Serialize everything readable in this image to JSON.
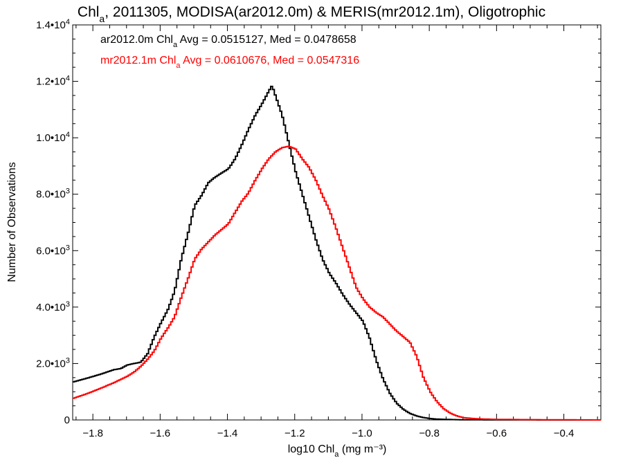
{
  "chart_data": {
    "type": "line",
    "title_parts": {
      "before": "Chl",
      "sub": "a",
      "after": ", 2011305, MODISA(ar2012.0m) & MERIS(mr2012.1m), Oligotrophic"
    },
    "xlabel_parts": {
      "before": "log10 Chl",
      "sub": "a",
      "after": " (mg m⁻³)"
    },
    "ylabel": "Number of Observations",
    "xlim": [
      -1.86,
      -0.29
    ],
    "ylim": [
      0,
      14000
    ],
    "x_ticks": [
      {
        "value": -1.8,
        "label": "−1.8"
      },
      {
        "value": -1.6,
        "label": "−1.6"
      },
      {
        "value": -1.4,
        "label": "−1.4"
      },
      {
        "value": -1.2,
        "label": "−1.2"
      },
      {
        "value": -1.0,
        "label": "−1.0"
      },
      {
        "value": -0.8,
        "label": "−0.8"
      },
      {
        "value": -0.6,
        "label": "−0.6"
      },
      {
        "value": -0.4,
        "label": "−0.4"
      }
    ],
    "y_ticks": [
      {
        "value": 0,
        "mant": "0",
        "exp": ""
      },
      {
        "value": 2000,
        "mant": "2.0•10",
        "exp": "3"
      },
      {
        "value": 4000,
        "mant": "4.0•10",
        "exp": "3"
      },
      {
        "value": 6000,
        "mant": "6.0•10",
        "exp": "3"
      },
      {
        "value": 8000,
        "mant": "8.0•10",
        "exp": "3"
      },
      {
        "value": 10000,
        "mant": "1.0•10",
        "exp": "4"
      },
      {
        "value": 12000,
        "mant": "1.2•10",
        "exp": "4"
      },
      {
        "value": 14000,
        "mant": "1.4•10",
        "exp": "4"
      }
    ],
    "grid": false,
    "legend_position": "top-left",
    "series": [
      {
        "color": "#000000",
        "legend_parts": {
          "before": "ar2012.0m Chl",
          "sub": "a",
          "after": " Avg = 0.0515127, Med = 0.0478658"
        },
        "points": [
          [
            -1.86,
            1350
          ],
          [
            -1.82,
            1480
          ],
          [
            -1.78,
            1620
          ],
          [
            -1.74,
            1780
          ],
          [
            -1.72,
            1820
          ],
          [
            -1.7,
            1950
          ],
          [
            -1.68,
            2000
          ],
          [
            -1.66,
            2050
          ],
          [
            -1.64,
            2350
          ],
          [
            -1.62,
            2950
          ],
          [
            -1.6,
            3450
          ],
          [
            -1.58,
            3900
          ],
          [
            -1.56,
            4550
          ],
          [
            -1.54,
            5700
          ],
          [
            -1.52,
            6600
          ],
          [
            -1.5,
            7600
          ],
          [
            -1.48,
            7950
          ],
          [
            -1.46,
            8400
          ],
          [
            -1.44,
            8600
          ],
          [
            -1.42,
            8750
          ],
          [
            -1.4,
            8900
          ],
          [
            -1.38,
            9250
          ],
          [
            -1.36,
            9750
          ],
          [
            -1.34,
            10300
          ],
          [
            -1.32,
            10800
          ],
          [
            -1.3,
            11200
          ],
          [
            -1.28,
            11650
          ],
          [
            -1.27,
            11850
          ],
          [
            -1.26,
            11500
          ],
          [
            -1.24,
            10800
          ],
          [
            -1.22,
            9800
          ],
          [
            -1.2,
            8800
          ],
          [
            -1.18,
            8000
          ],
          [
            -1.16,
            7200
          ],
          [
            -1.14,
            6400
          ],
          [
            -1.12,
            5700
          ],
          [
            -1.1,
            5200
          ],
          [
            -1.08,
            4850
          ],
          [
            -1.06,
            4450
          ],
          [
            -1.04,
            4100
          ],
          [
            -1.02,
            3800
          ],
          [
            -1.0,
            3500
          ],
          [
            -0.98,
            2900
          ],
          [
            -0.96,
            2100
          ],
          [
            -0.94,
            1450
          ],
          [
            -0.92,
            950
          ],
          [
            -0.9,
            600
          ],
          [
            -0.88,
            380
          ],
          [
            -0.86,
            230
          ],
          [
            -0.84,
            140
          ],
          [
            -0.82,
            85
          ],
          [
            -0.8,
            50
          ],
          [
            -0.78,
            30
          ],
          [
            -0.74,
            15
          ],
          [
            -0.7,
            6
          ],
          [
            -0.6,
            2
          ],
          [
            -0.29,
            0
          ]
        ]
      },
      {
        "color": "#ff0000",
        "legend_parts": {
          "before": "mr2012.1m Chl",
          "sub": "a",
          "after": " Avg = 0.0610676, Med = 0.0547316"
        },
        "points": [
          [
            -1.86,
            770
          ],
          [
            -1.82,
            930
          ],
          [
            -1.78,
            1120
          ],
          [
            -1.74,
            1320
          ],
          [
            -1.7,
            1550
          ],
          [
            -1.68,
            1700
          ],
          [
            -1.66,
            1900
          ],
          [
            -1.64,
            2150
          ],
          [
            -1.62,
            2450
          ],
          [
            -1.6,
            2900
          ],
          [
            -1.58,
            3250
          ],
          [
            -1.56,
            3650
          ],
          [
            -1.54,
            4350
          ],
          [
            -1.52,
            5000
          ],
          [
            -1.5,
            5700
          ],
          [
            -1.48,
            6050
          ],
          [
            -1.46,
            6300
          ],
          [
            -1.44,
            6550
          ],
          [
            -1.42,
            6750
          ],
          [
            -1.4,
            6950
          ],
          [
            -1.38,
            7350
          ],
          [
            -1.36,
            7750
          ],
          [
            -1.34,
            8050
          ],
          [
            -1.32,
            8500
          ],
          [
            -1.3,
            8900
          ],
          [
            -1.28,
            9250
          ],
          [
            -1.26,
            9500
          ],
          [
            -1.24,
            9650
          ],
          [
            -1.22,
            9700
          ],
          [
            -1.2,
            9600
          ],
          [
            -1.18,
            9250
          ],
          [
            -1.16,
            8950
          ],
          [
            -1.14,
            8500
          ],
          [
            -1.12,
            7950
          ],
          [
            -1.1,
            7450
          ],
          [
            -1.08,
            6800
          ],
          [
            -1.06,
            6100
          ],
          [
            -1.04,
            5400
          ],
          [
            -1.02,
            4700
          ],
          [
            -1.0,
            4300
          ],
          [
            -0.98,
            4000
          ],
          [
            -0.96,
            3800
          ],
          [
            -0.94,
            3650
          ],
          [
            -0.92,
            3400
          ],
          [
            -0.9,
            3150
          ],
          [
            -0.88,
            2950
          ],
          [
            -0.86,
            2750
          ],
          [
            -0.84,
            2250
          ],
          [
            -0.82,
            1500
          ],
          [
            -0.8,
            1000
          ],
          [
            -0.78,
            650
          ],
          [
            -0.76,
            400
          ],
          [
            -0.74,
            240
          ],
          [
            -0.72,
            140
          ],
          [
            -0.7,
            80
          ],
          [
            -0.66,
            40
          ],
          [
            -0.6,
            20
          ],
          [
            -0.5,
            10
          ],
          [
            -0.29,
            0
          ]
        ]
      }
    ]
  }
}
